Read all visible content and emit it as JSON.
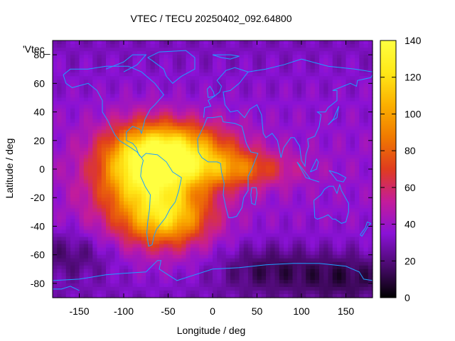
{
  "chart_data": {
    "type": "heatmap",
    "title": "VTEC / TECU 20250402_092.64800",
    "xlabel": "Longitude / deg",
    "ylabel": "Latitude / deg",
    "key_label": "'Vtec_",
    "xlim": [
      -180,
      180
    ],
    "ylim": [
      -90,
      90
    ],
    "xticks": [
      "-150",
      "-100",
      "-50",
      "0",
      "50",
      "100",
      "150"
    ],
    "xtick_values": [
      -150,
      -100,
      -50,
      0,
      50,
      100,
      150
    ],
    "yticks": [
      "80",
      "60",
      "40",
      "20",
      "0",
      "-20",
      "-40",
      "-60",
      "-80"
    ],
    "ytick_values": [
      80,
      60,
      40,
      20,
      0,
      -20,
      -40,
      -60,
      -80
    ],
    "colorbar": {
      "range": [
        0,
        140
      ],
      "ticks": [
        "0",
        "20",
        "40",
        "60",
        "80",
        "100",
        "120",
        "140"
      ],
      "tick_values": [
        0,
        20,
        40,
        60,
        80,
        100,
        120,
        140
      ],
      "palette": [
        "#000000",
        "#4a0a6e",
        "#8a12d6",
        "#c41c9a",
        "#e03c1e",
        "#f07a00",
        "#fbb000",
        "#ffe818",
        "#ffff40"
      ]
    },
    "grid": false,
    "field": {
      "description_units": "TECU",
      "background": 30,
      "peaks": [
        {
          "lon": -75,
          "lat": 5,
          "value": 125,
          "sigma_lon": 35,
          "sigma_lat": 18
        },
        {
          "lon": -65,
          "lat": -20,
          "value": 100,
          "sigma_lon": 45,
          "sigma_lat": 25
        },
        {
          "lon": -30,
          "lat": 15,
          "value": 95,
          "sigma_lon": 40,
          "sigma_lat": 12
        },
        {
          "lon": 20,
          "lat": 0,
          "value": 90,
          "sigma_lon": 45,
          "sigma_lat": 9
        },
        {
          "lon": -50,
          "lat": -35,
          "value": 85,
          "sigma_lon": 30,
          "sigma_lat": 12
        }
      ],
      "lows": [
        {
          "lon": 150,
          "lat": -75,
          "value": 10
        },
        {
          "lon": 60,
          "lat": -70,
          "value": 12
        },
        {
          "lon": -160,
          "lat": -60,
          "value": 14
        }
      ]
    },
    "coastline_color": "#1ea0ff"
  }
}
